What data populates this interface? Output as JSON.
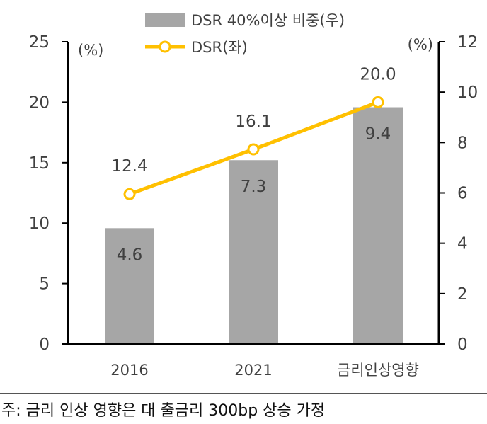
{
  "chart_data": {
    "type": "bar+line",
    "categories": [
      "2016",
      "2021",
      "금리인상영향"
    ],
    "series": [
      {
        "name": "DSR 40%이상 비중(우)",
        "type": "bar",
        "axis": "right",
        "values": [
          4.6,
          7.3,
          9.4
        ],
        "color": "#a6a6a6"
      },
      {
        "name": "DSR(좌)",
        "type": "line",
        "axis": "left",
        "values": [
          12.4,
          16.1,
          20.0
        ],
        "color": "#ffc000",
        "labels": [
          "12.4",
          "16.1",
          "20.0"
        ]
      }
    ],
    "left_axis": {
      "unit": "(%)",
      "min": 0,
      "max": 25,
      "ticks": [
        0,
        5,
        10,
        15,
        20,
        25
      ]
    },
    "right_axis": {
      "unit": "(%)",
      "min": 0,
      "max": 12,
      "ticks": [
        0,
        2,
        4,
        6,
        8,
        10,
        12
      ]
    },
    "bar_labels": [
      "4.6",
      "7.3",
      "9.4"
    ],
    "legend_position": "top",
    "grid": false
  },
  "footer": {
    "note": "주: 금리 인상 영향은 대 출금리 300bp 상승 가정"
  }
}
